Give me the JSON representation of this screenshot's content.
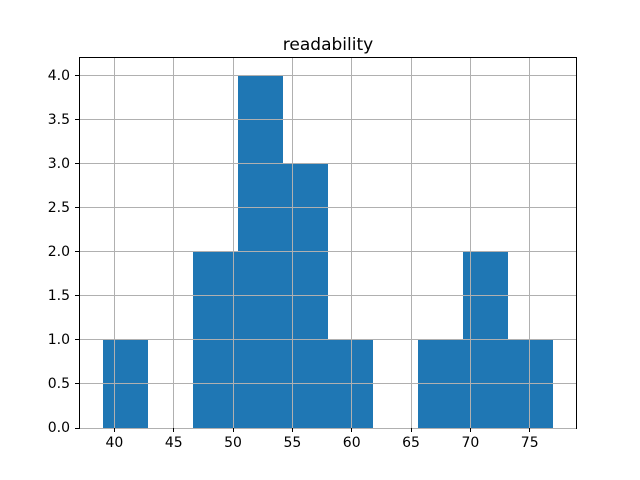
{
  "chart_data": {
    "type": "bar",
    "subtype": "histogram",
    "title": "readability",
    "xlabel": "",
    "ylabel": "",
    "bin_edges": [
      39.0,
      42.8,
      46.6,
      50.4,
      54.2,
      58.0,
      61.8,
      65.6,
      69.4,
      73.2,
      77.0
    ],
    "counts": [
      1,
      0,
      2,
      4,
      3,
      1,
      0,
      1,
      2,
      1
    ],
    "xticks": [
      40,
      45,
      50,
      55,
      60,
      65,
      70,
      75
    ],
    "yticks": [
      0.0,
      0.5,
      1.0,
      1.5,
      2.0,
      2.5,
      3.0,
      3.5,
      4.0
    ],
    "xlim": [
      37.1,
      78.9
    ],
    "ylim": [
      0,
      4.2
    ],
    "grid": true,
    "grid_above_bars": true,
    "legend": false,
    "bar_color": "#1f77b4",
    "grid_color": "#b0b0b0",
    "spine_color": "#000000",
    "text_color": "#000000"
  }
}
